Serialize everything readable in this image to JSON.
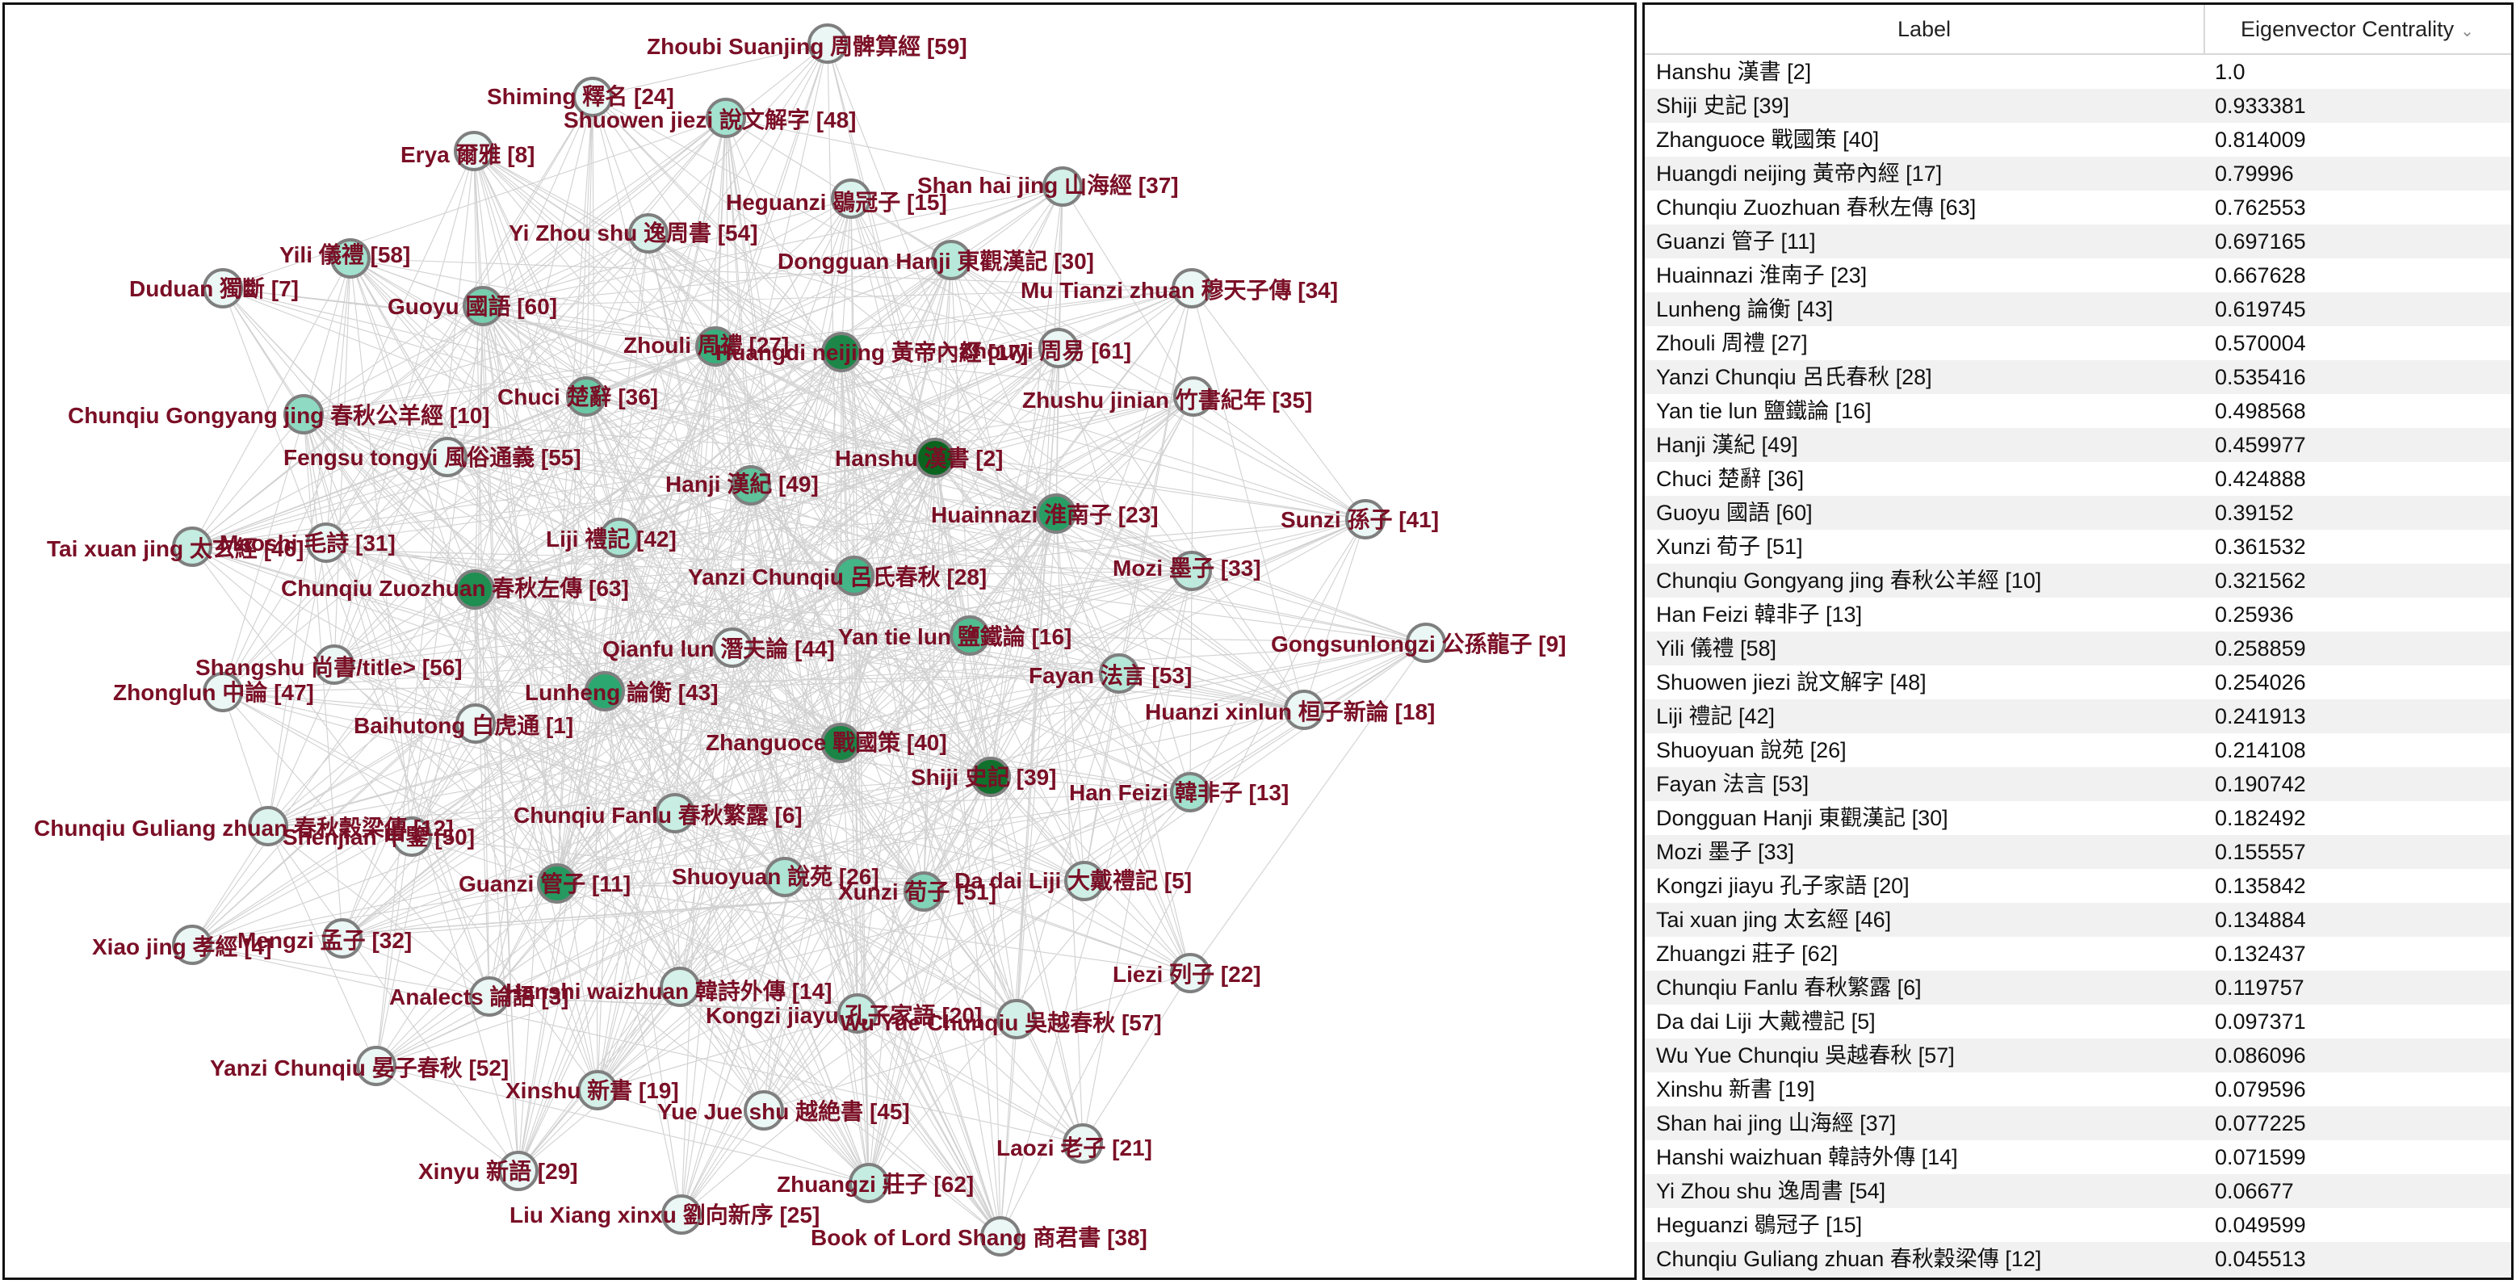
{
  "table": {
    "headers": {
      "label": "Label",
      "value": "Eigenvector Centrality"
    },
    "rows": [
      {
        "label": "Hanshu 漢書 [2]",
        "value": "1.0"
      },
      {
        "label": "Shiji 史記 [39]",
        "value": "0.933381"
      },
      {
        "label": "Zhanguoce 戰國策 [40]",
        "value": "0.814009"
      },
      {
        "label": "Huangdi neijing 黃帝內經 [17]",
        "value": "0.79996"
      },
      {
        "label": "Chunqiu Zuozhuan 春秋左傳 [63]",
        "value": "0.762553"
      },
      {
        "label": "Guanzi 管子 [11]",
        "value": "0.697165"
      },
      {
        "label": "Huainnazi 淮南子 [23]",
        "value": "0.667628"
      },
      {
        "label": "Lunheng 論衡 [43]",
        "value": "0.619745"
      },
      {
        "label": "Zhouli 周禮 [27]",
        "value": "0.570004"
      },
      {
        "label": "Yanzi Chunqiu 呂氏春秋 [28]",
        "value": "0.535416"
      },
      {
        "label": "Yan tie lun 鹽鐵論 [16]",
        "value": "0.498568"
      },
      {
        "label": "Hanji 漢紀 [49]",
        "value": "0.459977"
      },
      {
        "label": "Chuci 楚辭 [36]",
        "value": "0.424888"
      },
      {
        "label": "Guoyu 國語 [60]",
        "value": "0.39152"
      },
      {
        "label": "Xunzi 荀子 [51]",
        "value": "0.361532"
      },
      {
        "label": "Chunqiu Gongyang jing 春秋公羊經 [10]",
        "value": "0.321562"
      },
      {
        "label": "Han Feizi 韓非子 [13]",
        "value": "0.25936"
      },
      {
        "label": "Yili 儀禮 [58]",
        "value": "0.258859"
      },
      {
        "label": "Shuowen jiezi 說文解字 [48]",
        "value": "0.254026"
      },
      {
        "label": "Liji 禮記 [42]",
        "value": "0.241913"
      },
      {
        "label": "Shuoyuan 說苑 [26]",
        "value": "0.214108"
      },
      {
        "label": "Fayan 法言 [53]",
        "value": "0.190742"
      },
      {
        "label": "Dongguan Hanji 東觀漢記 [30]",
        "value": "0.182492"
      },
      {
        "label": "Mozi 墨子 [33]",
        "value": "0.155557"
      },
      {
        "label": "Kongzi jiayu 孔子家語 [20]",
        "value": "0.135842"
      },
      {
        "label": "Tai xuan jing 太玄經 [46]",
        "value": "0.134884"
      },
      {
        "label": "Zhuangzi 莊子 [62]",
        "value": "0.132437"
      },
      {
        "label": "Chunqiu Fanlu 春秋繁露 [6]",
        "value": "0.119757"
      },
      {
        "label": "Da dai Liji 大戴禮記 [5]",
        "value": "0.097371"
      },
      {
        "label": "Wu Yue Chunqiu 吳越春秋 [57]",
        "value": "0.086096"
      },
      {
        "label": "Xinshu 新書 [19]",
        "value": "0.079596"
      },
      {
        "label": "Shan hai jing 山海經 [37]",
        "value": "0.077225"
      },
      {
        "label": "Hanshi waizhuan 韓詩外傳 [14]",
        "value": "0.071599"
      },
      {
        "label": "Yi Zhou shu 逸周書 [54]",
        "value": "0.06677"
      },
      {
        "label": "Heguanzi 鶡冠子 [15]",
        "value": "0.049599"
      },
      {
        "label": "Chunqiu Guliang zhuan 春秋穀梁傳 [12]",
        "value": "0.045513"
      }
    ]
  },
  "graph": {
    "nodes": [
      {
        "label": "Zhoubi Suanjing 周髀算經 [59]",
        "c": 0.0
      },
      {
        "label": "Shiming 釋名 [24]",
        "c": 0.0
      },
      {
        "label": "Shuowen jiezi 說文解字 [48]",
        "c": 0.254026
      },
      {
        "label": "Erya 爾雅 [8]",
        "c": 0.0
      },
      {
        "label": "Shan hai jing 山海經 [37]",
        "c": 0.077225
      },
      {
        "label": "Heguanzi 鶡冠子 [15]",
        "c": 0.049599
      },
      {
        "label": "Yili 儀禮 [58]",
        "c": 0.258859
      },
      {
        "label": "Yi Zhou shu 逸周書 [54]",
        "c": 0.06677
      },
      {
        "label": "Dongguan Hanji 東觀漢記 [30]",
        "c": 0.182492
      },
      {
        "label": "Duduan 獨斷 [7]",
        "c": 0.0
      },
      {
        "label": "Guoyu 國語 [60]",
        "c": 0.39152
      },
      {
        "label": "Mu Tianzi zhuan 穆天子傳 [34]",
        "c": 0.0
      },
      {
        "label": "Zhouli 周禮 [27]",
        "c": 0.570004
      },
      {
        "label": "Huangdi neijing 黃帝內經 [17]",
        "c": 0.79996
      },
      {
        "label": "Zhouyi 周易 [61]",
        "c": 0.0
      },
      {
        "label": "Chuci 楚辭 [36]",
        "c": 0.424888
      },
      {
        "label": "Zhushu jinian 竹書紀年 [35]",
        "c": 0.0
      },
      {
        "label": "Chunqiu Gongyang jing 春秋公羊經 [10]",
        "c": 0.321562
      },
      {
        "label": "Fengsu tongyi 風俗通義 [55]",
        "c": 0.0
      },
      {
        "label": "Hanshu 漢書 [2]",
        "c": 1.0
      },
      {
        "label": "Hanji 漢紀 [49]",
        "c": 0.459977
      },
      {
        "label": "Huainnazi 淮南子 [23]",
        "c": 0.667628
      },
      {
        "label": "Sunzi 孫子 [41]",
        "c": 0.0
      },
      {
        "label": "Tai xuan jing 太玄經 [46]",
        "c": 0.134884
      },
      {
        "label": "Maoshi 毛詩 [31]",
        "c": 0.0
      },
      {
        "label": "Liji 禮記 [42]",
        "c": 0.241913
      },
      {
        "label": "Mozi 墨子 [33]",
        "c": 0.155557
      },
      {
        "label": "Chunqiu Zuozhuan 春秋左傳 [63]",
        "c": 0.762553
      },
      {
        "label": "Yanzi Chunqiu 呂氏春秋 [28]",
        "c": 0.535416
      },
      {
        "label": "Gongsunlongzi 公孫龍子 [9]",
        "c": 0.0
      },
      {
        "label": "Qianfu lun 潛夫論 [44]",
        "c": 0.0
      },
      {
        "label": "Yan tie lun 鹽鐵論 [16]",
        "c": 0.498568
      },
      {
        "label": "Fayan 法言 [53]",
        "c": 0.190742
      },
      {
        "label": "Shangshu 尚書/title> [56]",
        "c": 0.0
      },
      {
        "label": "Zhonglun 中論 [47]",
        "c": 0.0
      },
      {
        "label": "Lunheng 論衡 [43]",
        "c": 0.619745
      },
      {
        "label": "Huanzi xinlun 桓子新論 [18]",
        "c": 0.0
      },
      {
        "label": "Baihutong 白虎通 [1]",
        "c": 0.0
      },
      {
        "label": "Zhanguoce 戰國策 [40]",
        "c": 0.814009
      },
      {
        "label": "Shiji 史記 [39]",
        "c": 0.933381
      },
      {
        "label": "Han Feizi 韓非子 [13]",
        "c": 0.25936
      },
      {
        "label": "Chunqiu Fanlu 春秋繁露 [6]",
        "c": 0.119757
      },
      {
        "label": "Chunqiu Guliang zhuan 春秋穀梁傳 [12]",
        "c": 0.045513
      },
      {
        "label": "Shenjian 申鑒 [50]",
        "c": 0.0
      },
      {
        "label": "Guanzi 管子 [11]",
        "c": 0.697165
      },
      {
        "label": "Shuoyuan 說苑 [26]",
        "c": 0.214108
      },
      {
        "label": "Xunzi 荀子 [51]",
        "c": 0.361532
      },
      {
        "label": "Da dai Liji 大戴禮記 [5]",
        "c": 0.097371
      },
      {
        "label": "Xiao jing 孝經 [4]",
        "c": 0.0
      },
      {
        "label": "Mengzi 孟子 [32]",
        "c": 0.0
      },
      {
        "label": "Liezi 列子 [22]",
        "c": 0.0
      },
      {
        "label": "Analects 論語 [3]",
        "c": 0.0
      },
      {
        "label": "Hanshi waizhuan 韓詩外傳 [14]",
        "c": 0.071599
      },
      {
        "label": "Kongzi jiayu 孔子家語 [20]",
        "c": 0.135842
      },
      {
        "label": "Wu Yue Chunqiu 吳越春秋 [57]",
        "c": 0.086096
      },
      {
        "label": "Yanzi Chunqiu 晏子春秋 [52]",
        "c": 0.0
      },
      {
        "label": "Xinshu 新書 [19]",
        "c": 0.079596
      },
      {
        "label": "Yue Jue shu 越絶書 [45]",
        "c": 0.0
      },
      {
        "label": "Xinyu 新語 [29]",
        "c": 0.0
      },
      {
        "label": "Zhuangzi 莊子 [62]",
        "c": 0.132437
      },
      {
        "label": "Laozi 老子 [21]",
        "c": 0.0
      },
      {
        "label": "Liu Xiang xinxu 劉向新序 [25]",
        "c": 0.0
      },
      {
        "label": "Book of Lord Shang 商君書 [38]",
        "c": 0.0
      }
    ]
  }
}
